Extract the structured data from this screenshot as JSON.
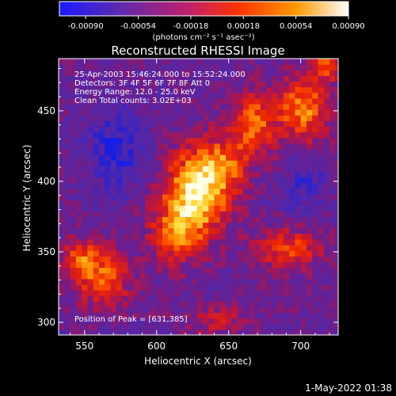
{
  "colorbar": {
    "ticks": [
      "-0.00090",
      "-0.00054",
      "-0.00018",
      "0.00018",
      "0.00054",
      "0.00090"
    ],
    "tick_values": [
      -0.0009,
      -0.00054,
      -0.00018,
      0.00018,
      0.00054,
      0.0009
    ],
    "unit_label": "(photons cm⁻² s⁻¹ asec⁻²)",
    "colors": [
      "#1a1aff",
      "#5a2ab0",
      "#c0206a",
      "#ff3300",
      "#ff9a00",
      "#ffffff"
    ]
  },
  "chart_data": {
    "type": "heatmap",
    "title": "Reconstructed RHESSI Image",
    "xlabel": "Heliocentric X (arcsec)",
    "ylabel": "Heliocentric Y (arcsec)",
    "xlim": [
      532,
      726
    ],
    "ylim": [
      291,
      487
    ],
    "x_ticks": [
      550,
      600,
      650,
      700
    ],
    "y_ticks": [
      300,
      350,
      400,
      450
    ],
    "peak": [
      631,
      385
    ],
    "annotations": [
      "25-Apr-2003 15:46:24.000 to 15:52:24.000",
      "Detectors: 3F 4F 5F 6F 7F 8F  Att 0",
      "Energy Range: 12.0 - 25.0 keV",
      "Clean      Total counts: 3.02E+03"
    ],
    "peak_label": "Position of Peak = [631,385]"
  },
  "footer": {
    "timestamp": "1-May-2022 01:38"
  }
}
